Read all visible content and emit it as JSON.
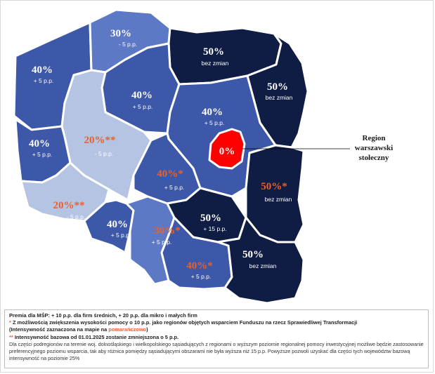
{
  "colors": {
    "dark_navy": "#0f1d45",
    "mid_blue": "#3d58a8",
    "medium_blue": "#5d78c5",
    "light_blue": "#b4c4e2",
    "red": "#ff0000",
    "orange": "#e8612c"
  },
  "regions": [
    {
      "id": "zachodniopomorskie",
      "pct": "40%",
      "sub": "+ 5 p.p.",
      "tone": "mid_blue"
    },
    {
      "id": "pomorskie",
      "pct": "30%",
      "sub": "- 5 p.p.",
      "tone": "medium_blue"
    },
    {
      "id": "warminsko-mazurskie",
      "pct": "50%",
      "sub": "bez zmian",
      "tone": "dark_navy"
    },
    {
      "id": "podlaskie",
      "pct": "50%",
      "sub": "bez zmian",
      "tone": "dark_navy"
    },
    {
      "id": "kujawsko-pomorskie",
      "pct": "40%",
      "sub": "+ 5 p.p.",
      "tone": "mid_blue"
    },
    {
      "id": "wielkopolskie",
      "pct": "20%**",
      "sub": "- 5 p.p.",
      "tone": "light_blue"
    },
    {
      "id": "lubuskie",
      "pct": "40%",
      "sub": "+ 5 p.p.",
      "tone": "mid_blue"
    },
    {
      "id": "mazowieckie",
      "pct": "40%",
      "sub": "+ 5 p.p.",
      "tone": "mid_blue"
    },
    {
      "id": "warszawski-stoleczny",
      "pct": "0%",
      "sub": "",
      "tone": "red"
    },
    {
      "id": "lodzkie",
      "pct": "40%*",
      "sub": "+ 5 p.p.",
      "tone": "mid_blue"
    },
    {
      "id": "lubelskie",
      "pct": "50%*",
      "sub": "bez zmian",
      "tone": "dark_navy"
    },
    {
      "id": "dolnoslaskie",
      "pct": "20%**",
      "sub": "- 5 p.p.",
      "tone": "light_blue"
    },
    {
      "id": "opolskie",
      "pct": "40%",
      "sub": "+ 5 p.p.",
      "tone": "mid_blue"
    },
    {
      "id": "slaskie",
      "pct": "30%*",
      "sub": "+ 5 p.p.",
      "tone": "medium_blue"
    },
    {
      "id": "swietokrzyskie",
      "pct": "50%",
      "sub": "+ 15 p.p.",
      "tone": "dark_navy"
    },
    {
      "id": "malopolskie",
      "pct": "40%*",
      "sub": "+ 5 p.p.",
      "tone": "mid_blue"
    },
    {
      "id": "podkarpackie",
      "pct": "50%",
      "sub": "bez zmian",
      "tone": "dark_navy"
    }
  ],
  "callout": {
    "line1": "Region",
    "line2": "warszawski",
    "line3": "stołeczny"
  },
  "legend": {
    "line1": "Premia dla MŚP: + 10 p.p. dla firm średnich, + 20 p.p. dla mikro i małych firm",
    "line2_star": "*",
    "line2": " Z możliwością zwiększenia wysokości pomocy o 10 p.p. jako regionów objętych wsparciem Funduszu na rzecz Sprawiedliwej Transformacji",
    "line3_a": "(Intensywność zaznaczona na mapie na ",
    "line3_orange": "pomarańczowo",
    "line3_b": ")",
    "line4_star": "**",
    "line4": " Intensywność bazowa od 01.01.2025 zostanie zmniejszona o 5 p.p.",
    "note": "Dla części podregionów na terenie woj. dolnośląskiego i wielkopolskiego sąsiadujących z regionami o wyższym poziomie regionalnej pomocy inwestycyjnej możliwe będzie zastosowanie preferencyjnego poziomu wsparcia, tak aby różnica pomiędzy sąsiadującymi obszarami nie była wyższa niż 15 p.p. Powyższe pozwoli uzyskać dla części tych województw bazową intensywność na poziomie 25%"
  }
}
